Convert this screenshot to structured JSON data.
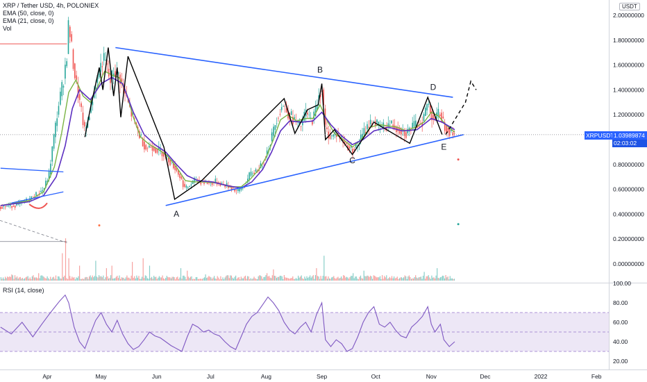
{
  "header": {
    "title": "XRP / Tether USD, 4h, POLONIEX",
    "indicators": [
      "EMA (50, close, 0)",
      "EMA (21, close, 0)",
      "Vol"
    ],
    "rsi_label": "RSI (14, close)",
    "currency_badge": "USDT"
  },
  "price_badge": {
    "symbol": "XRPUSDT",
    "price": "1.03989874",
    "countdown": "02:03:02",
    "value": 1.03989874
  },
  "colors": {
    "up": "#26a69a",
    "down": "#ef5350",
    "ema50": "#5b2ec0",
    "ema21": "#7ab343",
    "trend": "#2962ff",
    "rsi": "#7e57c2",
    "rsi_band": "#ede7f6",
    "badge_bg": "#2962ff",
    "countdown_bg": "#1e53e5",
    "wave": "#000000"
  },
  "chart_data": {
    "type": "line",
    "x_axis": {
      "labels": [
        "Apr",
        "May",
        "Jun",
        "Jul",
        "Aug",
        "Sep",
        "Oct",
        "Nov",
        "Dec",
        "2022",
        "Feb"
      ],
      "label_days": [
        0,
        30,
        61,
        91,
        122,
        153,
        183,
        214,
        244,
        275,
        306
      ]
    },
    "price_axis": {
      "ticks": [
        "2.00000000",
        "1.80000000",
        "1.60000000",
        "1.40000000",
        "1.20000000",
        "1.00000000",
        "0.80000000",
        "0.60000000",
        "0.40000000",
        "0.20000000",
        "0.00000000"
      ],
      "ylim": [
        0.0,
        2.0
      ]
    },
    "rsi_axis": {
      "ticks": [
        "100.00",
        "80.00",
        "60.00",
        "40.00",
        "20.00"
      ],
      "band": [
        30,
        70
      ],
      "ylim": [
        16,
        100
      ]
    },
    "price_path": [
      [
        -26,
        0.46
      ],
      [
        -18,
        0.47
      ],
      [
        -10,
        0.52
      ],
      [
        -6,
        0.56
      ],
      [
        -2,
        0.6
      ],
      [
        1,
        0.72
      ],
      [
        3,
        0.95
      ],
      [
        6,
        1.25
      ],
      [
        9,
        1.48
      ],
      [
        11,
        1.7
      ],
      [
        12,
        1.96
      ],
      [
        13,
        1.8
      ],
      [
        15,
        1.55
      ],
      [
        18,
        1.3
      ],
      [
        21,
        1.05
      ],
      [
        24,
        1.25
      ],
      [
        27,
        1.45
      ],
      [
        29,
        1.55
      ],
      [
        31,
        1.65
      ],
      [
        33,
        1.6
      ],
      [
        35,
        1.45
      ],
      [
        37,
        1.55
      ],
      [
        40,
        1.52
      ],
      [
        43,
        1.38
      ],
      [
        47,
        1.2
      ],
      [
        51,
        1.05
      ],
      [
        55,
        0.93
      ],
      [
        58,
        0.95
      ],
      [
        61,
        0.92
      ],
      [
        64,
        0.9
      ],
      [
        67,
        0.85
      ],
      [
        71,
        0.78
      ],
      [
        74,
        0.7
      ],
      [
        77,
        0.6
      ],
      [
        80,
        0.64
      ],
      [
        83,
        0.68
      ],
      [
        86,
        0.66
      ],
      [
        90,
        0.65
      ],
      [
        94,
        0.66
      ],
      [
        98,
        0.64
      ],
      [
        102,
        0.62
      ],
      [
        106,
        0.58
      ],
      [
        110,
        0.63
      ],
      [
        113,
        0.72
      ],
      [
        116,
        0.75
      ],
      [
        119,
        0.78
      ],
      [
        122,
        0.88
      ],
      [
        125,
        1.02
      ],
      [
        128,
        1.18
      ],
      [
        131,
        1.28
      ],
      [
        135,
        1.2
      ],
      [
        138,
        1.15
      ],
      [
        141,
        1.1
      ],
      [
        144,
        1.22
      ],
      [
        147,
        1.15
      ],
      [
        149,
        1.2
      ],
      [
        151,
        1.35
      ],
      [
        153,
        1.42
      ],
      [
        155,
        1.08
      ],
      [
        158,
        1.02
      ],
      [
        161,
        1.05
      ],
      [
        164,
        1.0
      ],
      [
        167,
        0.95
      ],
      [
        170,
        0.92
      ],
      [
        173,
        0.96
      ],
      [
        176,
        1.05
      ],
      [
        179,
        1.12
      ],
      [
        182,
        1.15
      ],
      [
        185,
        1.1
      ],
      [
        188,
        1.1
      ],
      [
        191,
        1.13
      ],
      [
        194,
        1.1
      ],
      [
        197,
        1.08
      ],
      [
        200,
        1.05
      ],
      [
        203,
        1.1
      ],
      [
        206,
        1.12
      ],
      [
        209,
        1.15
      ],
      [
        212,
        1.3
      ],
      [
        214,
        1.2
      ],
      [
        216,
        1.17
      ],
      [
        219,
        1.22
      ],
      [
        221,
        1.12
      ],
      [
        224,
        1.07
      ],
      [
        227,
        1.04
      ]
    ],
    "ema21_path": [
      [
        -26,
        0.47
      ],
      [
        -10,
        0.51
      ],
      [
        -2,
        0.58
      ],
      [
        4,
        0.78
      ],
      [
        8,
        1.05
      ],
      [
        12,
        1.38
      ],
      [
        16,
        1.48
      ],
      [
        20,
        1.35
      ],
      [
        24,
        1.3
      ],
      [
        28,
        1.42
      ],
      [
        32,
        1.55
      ],
      [
        36,
        1.52
      ],
      [
        40,
        1.5
      ],
      [
        44,
        1.38
      ],
      [
        48,
        1.18
      ],
      [
        52,
        1.02
      ],
      [
        57,
        0.96
      ],
      [
        62,
        0.92
      ],
      [
        67,
        0.87
      ],
      [
        72,
        0.78
      ],
      [
        77,
        0.67
      ],
      [
        82,
        0.66
      ],
      [
        88,
        0.66
      ],
      [
        95,
        0.65
      ],
      [
        102,
        0.62
      ],
      [
        108,
        0.62
      ],
      [
        113,
        0.68
      ],
      [
        118,
        0.76
      ],
      [
        122,
        0.86
      ],
      [
        126,
        1.0
      ],
      [
        130,
        1.16
      ],
      [
        134,
        1.2
      ],
      [
        139,
        1.15
      ],
      [
        144,
        1.17
      ],
      [
        148,
        1.17
      ],
      [
        152,
        1.28
      ],
      [
        156,
        1.15
      ],
      [
        160,
        1.05
      ],
      [
        165,
        1.0
      ],
      [
        170,
        0.94
      ],
      [
        175,
        1.0
      ],
      [
        180,
        1.1
      ],
      [
        185,
        1.12
      ],
      [
        190,
        1.11
      ],
      [
        195,
        1.1
      ],
      [
        200,
        1.07
      ],
      [
        205,
        1.1
      ],
      [
        210,
        1.14
      ],
      [
        214,
        1.22
      ],
      [
        218,
        1.19
      ],
      [
        222,
        1.12
      ],
      [
        227,
        1.06
      ]
    ],
    "ema50_path": [
      [
        -26,
        0.47
      ],
      [
        -10,
        0.5
      ],
      [
        -2,
        0.55
      ],
      [
        5,
        0.7
      ],
      [
        10,
        0.95
      ],
      [
        14,
        1.25
      ],
      [
        18,
        1.4
      ],
      [
        24,
        1.32
      ],
      [
        30,
        1.45
      ],
      [
        36,
        1.5
      ],
      [
        42,
        1.45
      ],
      [
        48,
        1.22
      ],
      [
        54,
        1.04
      ],
      [
        60,
        0.96
      ],
      [
        66,
        0.9
      ],
      [
        72,
        0.8
      ],
      [
        78,
        0.71
      ],
      [
        84,
        0.67
      ],
      [
        92,
        0.66
      ],
      [
        100,
        0.63
      ],
      [
        108,
        0.61
      ],
      [
        114,
        0.66
      ],
      [
        120,
        0.76
      ],
      [
        125,
        0.9
      ],
      [
        130,
        1.07
      ],
      [
        135,
        1.15
      ],
      [
        142,
        1.14
      ],
      [
        148,
        1.15
      ],
      [
        153,
        1.22
      ],
      [
        158,
        1.12
      ],
      [
        164,
        1.03
      ],
      [
        170,
        0.96
      ],
      [
        176,
        1.0
      ],
      [
        182,
        1.07
      ],
      [
        190,
        1.1
      ],
      [
        198,
        1.07
      ],
      [
        206,
        1.08
      ],
      [
        214,
        1.17
      ],
      [
        220,
        1.14
      ],
      [
        227,
        1.08
      ]
    ],
    "rsi_path": [
      [
        -26,
        55
      ],
      [
        -20,
        48
      ],
      [
        -14,
        60
      ],
      [
        -8,
        45
      ],
      [
        -3,
        58
      ],
      [
        1,
        68
      ],
      [
        4,
        75
      ],
      [
        7,
        82
      ],
      [
        10,
        88
      ],
      [
        12,
        80
      ],
      [
        15,
        55
      ],
      [
        18,
        40
      ],
      [
        21,
        33
      ],
      [
        24,
        48
      ],
      [
        27,
        62
      ],
      [
        30,
        70
      ],
      [
        33,
        58
      ],
      [
        36,
        50
      ],
      [
        39,
        62
      ],
      [
        42,
        48
      ],
      [
        45,
        38
      ],
      [
        48,
        32
      ],
      [
        51,
        35
      ],
      [
        54,
        42
      ],
      [
        57,
        50
      ],
      [
        60,
        46
      ],
      [
        63,
        44
      ],
      [
        66,
        40
      ],
      [
        69,
        36
      ],
      [
        72,
        33
      ],
      [
        75,
        30
      ],
      [
        78,
        45
      ],
      [
        81,
        58
      ],
      [
        84,
        55
      ],
      [
        87,
        50
      ],
      [
        90,
        52
      ],
      [
        93,
        48
      ],
      [
        96,
        46
      ],
      [
        99,
        40
      ],
      [
        102,
        35
      ],
      [
        105,
        32
      ],
      [
        108,
        45
      ],
      [
        111,
        58
      ],
      [
        114,
        66
      ],
      [
        117,
        70
      ],
      [
        120,
        78
      ],
      [
        123,
        86
      ],
      [
        126,
        80
      ],
      [
        129,
        72
      ],
      [
        132,
        60
      ],
      [
        135,
        52
      ],
      [
        138,
        48
      ],
      [
        141,
        55
      ],
      [
        144,
        60
      ],
      [
        147,
        50
      ],
      [
        150,
        68
      ],
      [
        153,
        80
      ],
      [
        155,
        42
      ],
      [
        158,
        35
      ],
      [
        161,
        42
      ],
      [
        164,
        38
      ],
      [
        167,
        30
      ],
      [
        170,
        33
      ],
      [
        173,
        45
      ],
      [
        176,
        60
      ],
      [
        179,
        70
      ],
      [
        182,
        76
      ],
      [
        185,
        58
      ],
      [
        188,
        55
      ],
      [
        191,
        60
      ],
      [
        194,
        52
      ],
      [
        197,
        46
      ],
      [
        200,
        44
      ],
      [
        203,
        55
      ],
      [
        206,
        60
      ],
      [
        209,
        66
      ],
      [
        212,
        76
      ],
      [
        214,
        58
      ],
      [
        216,
        50
      ],
      [
        219,
        58
      ],
      [
        221,
        42
      ],
      [
        224,
        35
      ],
      [
        227,
        40
      ]
    ],
    "volume_spikes": [
      [
        -20,
        0.05
      ],
      [
        -5,
        0.06
      ],
      [
        8,
        0.22
      ],
      [
        10,
        0.34
      ],
      [
        12,
        0.18
      ],
      [
        18,
        0.12
      ],
      [
        27,
        0.16
      ],
      [
        33,
        0.1
      ],
      [
        36,
        0.12
      ],
      [
        47,
        0.15
      ],
      [
        53,
        0.18
      ],
      [
        57,
        0.12
      ],
      [
        74,
        0.1
      ],
      [
        78,
        0.08
      ],
      [
        88,
        0.05
      ],
      [
        105,
        0.04
      ],
      [
        122,
        0.06
      ],
      [
        126,
        0.09
      ],
      [
        150,
        0.1
      ],
      [
        154,
        0.2
      ],
      [
        170,
        0.06
      ],
      [
        176,
        0.08
      ],
      [
        210,
        0.07
      ],
      [
        217,
        0.1
      ]
    ],
    "trendlines": {
      "upper_old": [
        [
          -26,
          0.77
        ],
        [
          9,
          0.74
        ]
      ],
      "lower_old": [
        [
          -20,
          0.49
        ],
        [
          9,
          0.58
        ]
      ],
      "upper": [
        [
          38,
          1.74
        ],
        [
          226,
          1.34
        ]
      ],
      "lower": [
        [
          66,
          0.47
        ],
        [
          232,
          1.04
        ]
      ]
    },
    "wave_path": [
      [
        21,
        1.02
      ],
      [
        24,
        1.25
      ],
      [
        29,
        1.58
      ],
      [
        31,
        1.4
      ],
      [
        34,
        1.74
      ],
      [
        37,
        1.35
      ],
      [
        39,
        1.58
      ],
      [
        41,
        1.18
      ],
      [
        45,
        1.67
      ],
      [
        65,
        0.94
      ],
      [
        71,
        0.52
      ],
      [
        86,
        0.67
      ],
      [
        132,
        1.33
      ],
      [
        138,
        1.05
      ],
      [
        145,
        1.24
      ],
      [
        151,
        1.28
      ],
      [
        153,
        1.45
      ],
      [
        155,
        1.0
      ],
      [
        160,
        1.08
      ],
      [
        170,
        0.88
      ],
      [
        182,
        1.14
      ],
      [
        202,
        0.97
      ],
      [
        212,
        1.34
      ],
      [
        220,
        1.04
      ]
    ],
    "dashed_projection": [
      [
        222,
        1.04
      ],
      [
        233,
        1.3
      ],
      [
        236,
        1.47
      ],
      [
        239,
        1.4
      ]
    ],
    "wave_labels": [
      {
        "label": "A",
        "day": 72,
        "price": 0.38
      },
      {
        "label": "B",
        "day": 152,
        "price": 1.54
      },
      {
        "label": "C",
        "day": 170,
        "price": 0.81
      },
      {
        "label": "D",
        "day": 215,
        "price": 1.4
      },
      {
        "label": "E",
        "day": 221,
        "price": 0.92
      }
    ]
  }
}
